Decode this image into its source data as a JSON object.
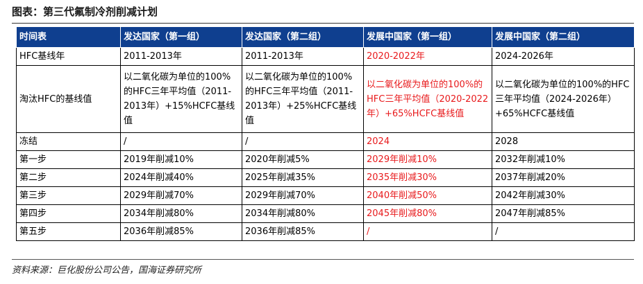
{
  "title": "图表：第三代氟制冷剂削减计划",
  "source": "资料来源：巨化股份公司公告，国海证券研究所",
  "colors": {
    "header_bg": "#0f3f8f",
    "header_text": "#ffffff",
    "highlight_text": "#e8191b"
  },
  "table": {
    "headers": [
      "时间表",
      "发达国家（第一组）",
      "发达国家（第二组）",
      "发展中国家（第一组）",
      "发展中国家（第二组）"
    ],
    "rows": [
      [
        "HFC基线年",
        "2011-2013年",
        "2011-2013年",
        "2020-2022年",
        "2024-2026年"
      ],
      [
        "淘汰HFC的基线值",
        "以二氧化碳为单位的100%的HFC三年平均值（2011-2013年）+15%HCFC基线值",
        "以二氧化碳为单位的100%的HFC三年平均值（2011-2013年）+25%HCFC基线值",
        "以二氧化碳为单位的100%的HFC三年平均值（2020-2022年）+65%HCFC基线值",
        "以二氧化碳为单位的100%的HFC三年平均值（2024-2026年）+65%HCFC基线值"
      ],
      [
        "冻结",
        "/",
        "/",
        "2024",
        "2028"
      ],
      [
        "第一步",
        "2019年削减10%",
        "2020年削减5%",
        "2029年削减10%",
        "2032年削减10%"
      ],
      [
        "第二步",
        "2024年削减40%",
        "2025年削减35%",
        "2035年削减30%",
        "2037年削减20%"
      ],
      [
        "第三步",
        "2029年削减70%",
        "2029年削减70%",
        "2040年削减50%",
        "2042年削减30%"
      ],
      [
        "第四步",
        "2034年削减80%",
        "2034年削减80%",
        "2045年削减80%",
        "2047年削减85%"
      ],
      [
        "第五步",
        "2036年削减85%",
        "2036年削减85%",
        "/",
        "/"
      ]
    ]
  }
}
